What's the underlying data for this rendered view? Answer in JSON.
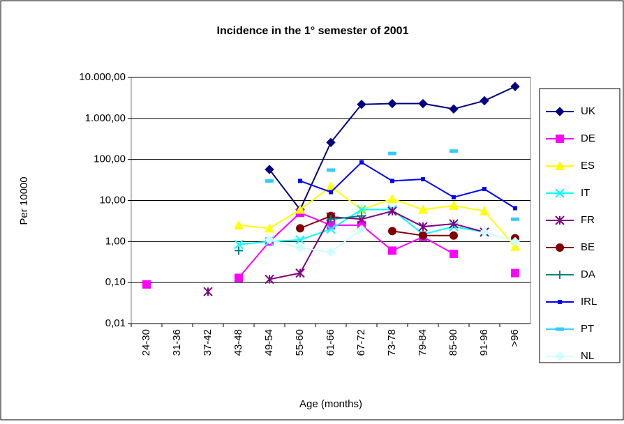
{
  "chart_data": {
    "type": "line",
    "title": "Incidence in the 1° semester of 2001",
    "x_label": "Age (months)",
    "y_label": "Per 10000",
    "log_scale": true,
    "grid": true,
    "legend": "right",
    "categories": [
      "24-30",
      "31-36",
      "37-42",
      "43-48",
      "49-54",
      "55-60",
      "61-66",
      "67-72",
      "73-78",
      "79-84",
      "85-90",
      "91-96",
      ">96"
    ],
    "ylim": [
      0.01,
      10000
    ],
    "yticks": [
      {
        "value": 10000,
        "label": "10.000,00"
      },
      {
        "value": 1000,
        "label": "1.000,00"
      },
      {
        "value": 100,
        "label": "100,00"
      },
      {
        "value": 10,
        "label": "10,00"
      },
      {
        "value": 1,
        "label": "1,00"
      },
      {
        "value": 0.1,
        "label": "0,10"
      },
      {
        "value": 0.01,
        "label": "0,01"
      }
    ],
    "series": [
      {
        "name": "UK",
        "color": "#000080",
        "marker": "diamond",
        "values": [
          null,
          null,
          null,
          null,
          57,
          6,
          260,
          2200,
          2300,
          2300,
          1700,
          2700,
          6000
        ]
      },
      {
        "name": "DE",
        "color": "#ff00ff",
        "marker": "square",
        "values": [
          0.09,
          null,
          null,
          0.13,
          1.0,
          5,
          2.5,
          2.5,
          0.6,
          1.3,
          0.5,
          null,
          0.17
        ]
      },
      {
        "name": "ES",
        "color": "#ffff00",
        "marker": "triangle",
        "values": [
          null,
          null,
          null,
          2.5,
          2.1,
          6,
          22,
          6,
          11,
          6,
          7.5,
          5.5,
          0.75
        ]
      },
      {
        "name": "IT",
        "color": "#00ffff",
        "marker": "x",
        "values": [
          null,
          null,
          null,
          0.85,
          1.0,
          1.1,
          2.0,
          6,
          6,
          1.5,
          2.3,
          1.7,
          null
        ]
      },
      {
        "name": "FR",
        "color": "#800080",
        "marker": "star",
        "values": [
          null,
          null,
          0.06,
          null,
          0.12,
          0.17,
          4,
          3.5,
          5.5,
          2.3,
          2.7,
          1.7,
          null
        ]
      },
      {
        "name": "BE",
        "color": "#800000",
        "marker": "circle",
        "values": [
          null,
          null,
          null,
          null,
          null,
          2.1,
          4.2,
          null,
          1.8,
          1.4,
          1.4,
          null,
          1.2
        ]
      },
      {
        "name": "DA",
        "color": "#008080",
        "marker": "plus",
        "values": [
          null,
          null,
          null,
          0.6,
          null,
          null,
          3.5,
          4.2,
          null,
          null,
          null,
          null,
          null
        ]
      },
      {
        "name": "IRL",
        "color": "#0000ff",
        "marker": "smallsquare",
        "values": [
          null,
          null,
          null,
          null,
          null,
          30,
          16,
          85,
          30,
          33,
          12,
          19,
          6.5
        ]
      },
      {
        "name": "PT",
        "color": "#33ccff",
        "marker": "dash",
        "values": [
          null,
          null,
          null,
          null,
          30,
          null,
          55,
          null,
          140,
          null,
          160,
          null,
          3.5
        ]
      },
      {
        "name": "NL",
        "color": "#ccffff",
        "marker": "diamond",
        "values": [
          null,
          null,
          null,
          null,
          1.1,
          0.7,
          0.55,
          2.0,
          null,
          null,
          null,
          1.7,
          1.0
        ]
      }
    ]
  }
}
